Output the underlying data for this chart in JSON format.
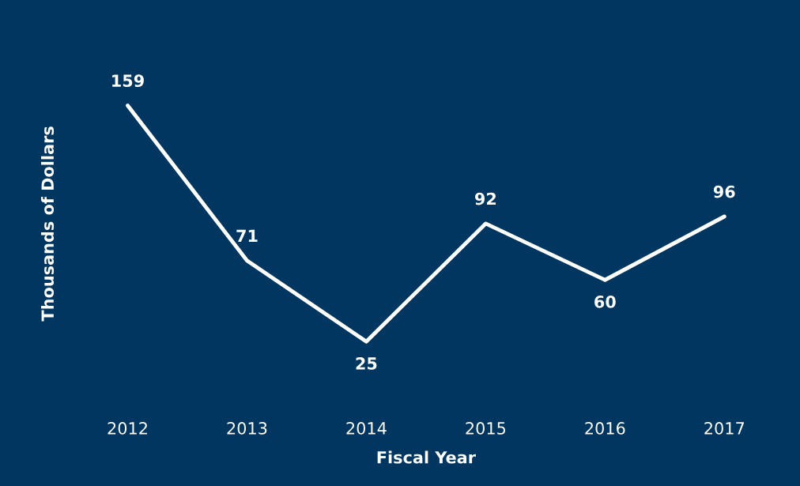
{
  "chart_data": {
    "type": "line",
    "xlabel": "Fiscal Year",
    "ylabel": "Thousands of Dollars",
    "categories": [
      "2012",
      "2013",
      "2014",
      "2015",
      "2016",
      "2017"
    ],
    "values": [
      159,
      71,
      25,
      92,
      60,
      96
    ],
    "color": "#ffffff",
    "data_labels": true,
    "grid": false,
    "legend": false,
    "tick_labels": "x"
  }
}
